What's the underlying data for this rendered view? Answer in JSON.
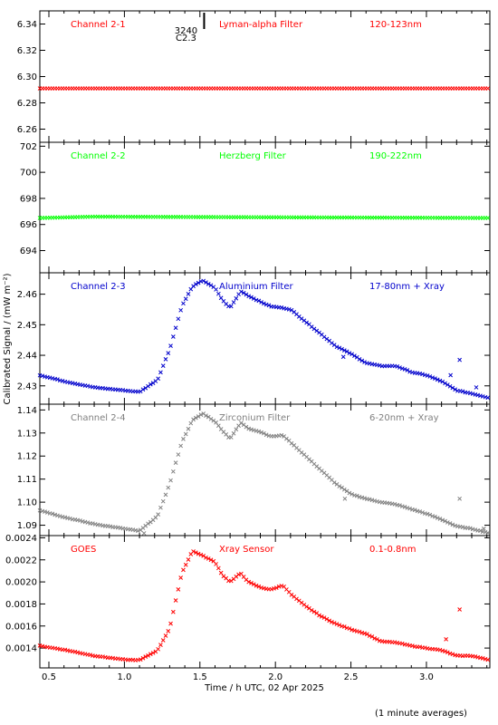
{
  "x_axis": {
    "label": "Time / h UTC, 02 Apr 2025",
    "min": 0.44,
    "max": 3.42,
    "ticks": [
      "0.5",
      "1.0",
      "1.5",
      "2.0",
      "2.5",
      "3.0"
    ]
  },
  "y_axis_label": "Calibrated Signal / (mW m⁻²)",
  "footer_note": "(1 minute averages)",
  "flare_marker": {
    "class": "C2.3",
    "region": "3240",
    "time": 1.45
  },
  "chart_data": [
    {
      "type": "scatter",
      "channel": "Channel 2-1",
      "filter": "Lyman-alpha Filter",
      "band": "120-123nm",
      "color": "#ff0000",
      "ylim": [
        6.25,
        6.35
      ],
      "yticks": [
        "6.26",
        "6.28",
        "6.30",
        "6.32",
        "6.34"
      ],
      "grid": false,
      "profile": "flat",
      "baseline": 6.291,
      "key_points": [
        [
          0.44,
          6.291
        ],
        [
          3.42,
          6.291
        ]
      ]
    },
    {
      "type": "scatter",
      "channel": "Channel 2-2",
      "filter": "Herzberg Filter",
      "band": "190-222nm",
      "color": "#00ff00",
      "ylim": [
        692.3,
        702.3
      ],
      "yticks": [
        "694",
        "696",
        "698",
        "700",
        "702"
      ],
      "grid": false,
      "profile": "flat",
      "baseline": 696.5,
      "key_points": [
        [
          0.44,
          696.5
        ],
        [
          0.8,
          696.6
        ],
        [
          2.05,
          696.55
        ],
        [
          3.42,
          696.5
        ]
      ]
    },
    {
      "type": "scatter",
      "channel": "Channel 2-3",
      "filter": "Aluminium Filter",
      "band": "17-80nm + Xray",
      "color": "#0000cc",
      "ylim": [
        2.424,
        2.467
      ],
      "yticks": [
        "2.43",
        "2.44",
        "2.45",
        "2.46"
      ],
      "grid": false,
      "profile": "flare",
      "key_points": [
        [
          0.44,
          2.4335
        ],
        [
          0.6,
          2.4315
        ],
        [
          0.8,
          2.4295
        ],
        [
          1.0,
          2.4285
        ],
        [
          1.1,
          2.428
        ],
        [
          1.22,
          2.432
        ],
        [
          1.3,
          2.442
        ],
        [
          1.38,
          2.456
        ],
        [
          1.45,
          2.4625
        ],
        [
          1.52,
          2.4645
        ],
        [
          1.6,
          2.462
        ],
        [
          1.65,
          2.458
        ],
        [
          1.7,
          2.4555
        ],
        [
          1.77,
          2.461
        ],
        [
          1.82,
          2.4595
        ],
        [
          1.9,
          2.4575
        ],
        [
          1.97,
          2.456
        ],
        [
          2.05,
          2.4555
        ],
        [
          2.1,
          2.455
        ],
        [
          2.2,
          2.451
        ],
        [
          2.3,
          2.447
        ],
        [
          2.4,
          2.443
        ],
        [
          2.5,
          2.4405
        ],
        [
          2.6,
          2.4375
        ],
        [
          2.7,
          2.4365
        ],
        [
          2.8,
          2.4365
        ],
        [
          2.9,
          2.4345
        ],
        [
          3.0,
          2.4335
        ],
        [
          3.1,
          2.4315
        ],
        [
          3.2,
          2.4285
        ],
        [
          3.3,
          2.4275
        ],
        [
          3.42,
          2.426
        ]
      ],
      "outliers": [
        [
          2.45,
          2.4395
        ],
        [
          3.16,
          2.4335
        ],
        [
          3.22,
          2.4385
        ],
        [
          3.33,
          2.4295
        ]
      ]
    },
    {
      "type": "scatter",
      "channel": "Channel 2-4",
      "filter": "Zirconium Filter",
      "band": "6-20nm + Xray",
      "color": "#808080",
      "ylim": [
        1.0855,
        1.1425
      ],
      "yticks": [
        "1.09",
        "1.10",
        "1.11",
        "1.12",
        "1.13",
        "1.14"
      ],
      "grid": false,
      "profile": "flare",
      "key_points": [
        [
          0.44,
          1.0965
        ],
        [
          0.6,
          1.0935
        ],
        [
          0.8,
          1.0905
        ],
        [
          1.0,
          1.0885
        ],
        [
          1.1,
          1.0875
        ],
        [
          1.22,
          1.094
        ],
        [
          1.3,
          1.108
        ],
        [
          1.38,
          1.126
        ],
        [
          1.45,
          1.1355
        ],
        [
          1.52,
          1.1385
        ],
        [
          1.6,
          1.135
        ],
        [
          1.65,
          1.131
        ],
        [
          1.7,
          1.1275
        ],
        [
          1.77,
          1.1345
        ],
        [
          1.82,
          1.132
        ],
        [
          1.9,
          1.1305
        ],
        [
          1.97,
          1.1285
        ],
        [
          2.05,
          1.129
        ],
        [
          2.1,
          1.126
        ],
        [
          2.2,
          1.12
        ],
        [
          2.3,
          1.114
        ],
        [
          2.4,
          1.108
        ],
        [
          2.5,
          1.1035
        ],
        [
          2.6,
          1.1015
        ],
        [
          2.7,
          1.1
        ],
        [
          2.8,
          1.099
        ],
        [
          2.9,
          1.097
        ],
        [
          3.0,
          1.095
        ],
        [
          3.1,
          1.0925
        ],
        [
          3.2,
          1.0895
        ],
        [
          3.3,
          1.0885
        ],
        [
          3.42,
          1.0865
        ]
      ],
      "outliers": [
        [
          2.46,
          1.1015
        ],
        [
          3.22,
          1.1015
        ],
        [
          1.13,
          1.0865
        ],
        [
          3.38,
          1.0885
        ]
      ]
    },
    {
      "type": "scatter",
      "channel": "GOES",
      "filter": "Xray Sensor",
      "band": "0.1-0.8nm",
      "color": "#ff0000",
      "ylim": [
        0.00122,
        0.00242
      ],
      "yticks": [
        "0.0014",
        "0.0016",
        "0.0018",
        "0.0020",
        "0.0022",
        "0.0024"
      ],
      "grid": false,
      "profile": "flare",
      "key_points": [
        [
          0.44,
          0.00142
        ],
        [
          0.6,
          0.001385
        ],
        [
          0.8,
          0.00133
        ],
        [
          1.0,
          0.001295
        ],
        [
          1.1,
          0.00129
        ],
        [
          1.22,
          0.00138
        ],
        [
          1.3,
          0.00158
        ],
        [
          1.38,
          0.00208
        ],
        [
          1.45,
          0.00228
        ],
        [
          1.5,
          0.00225
        ],
        [
          1.6,
          0.00218
        ],
        [
          1.65,
          0.00206
        ],
        [
          1.7,
          0.002
        ],
        [
          1.77,
          0.00208
        ],
        [
          1.82,
          0.002
        ],
        [
          1.9,
          0.00195
        ],
        [
          1.97,
          0.00193
        ],
        [
          2.05,
          0.00197
        ],
        [
          2.1,
          0.00189
        ],
        [
          2.2,
          0.00178
        ],
        [
          2.3,
          0.00169
        ],
        [
          2.4,
          0.00162
        ],
        [
          2.5,
          0.00157
        ],
        [
          2.6,
          0.00153
        ],
        [
          2.7,
          0.00146
        ],
        [
          2.8,
          0.00145
        ],
        [
          2.9,
          0.00142
        ],
        [
          3.0,
          0.0014
        ],
        [
          3.1,
          0.00138
        ],
        [
          3.2,
          0.00133
        ],
        [
          3.3,
          0.00133
        ],
        [
          3.42,
          0.00129
        ]
      ],
      "outliers": [
        [
          3.22,
          0.00175
        ],
        [
          3.13,
          0.00148
        ]
      ]
    }
  ]
}
